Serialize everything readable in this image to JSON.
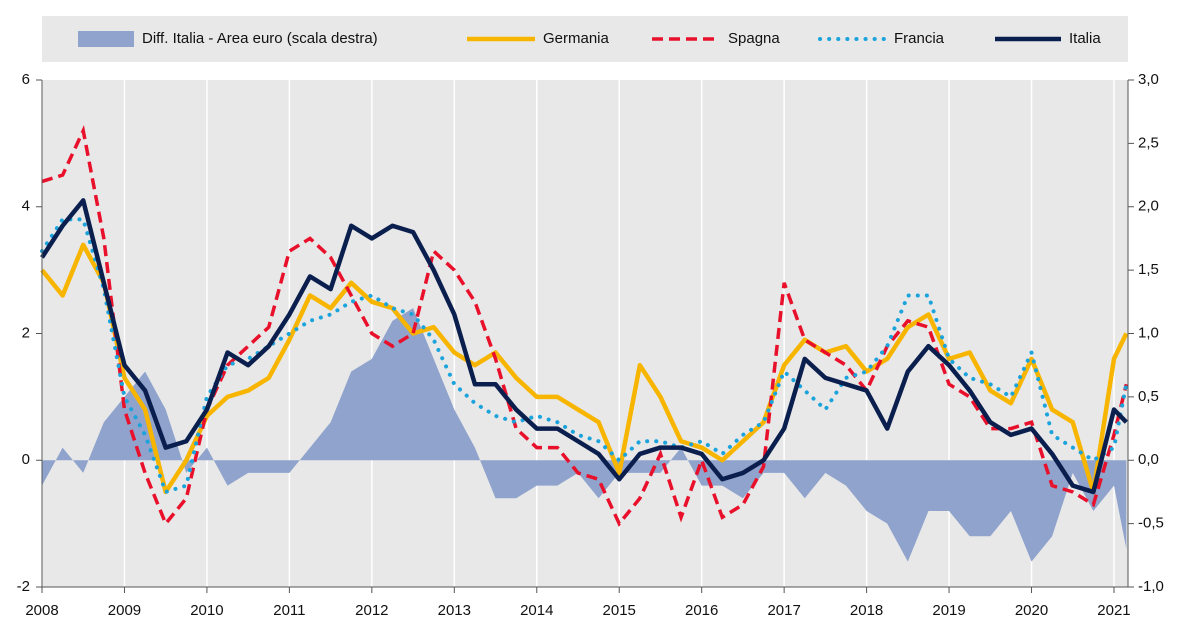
{
  "chart_data": {
    "type": "line",
    "x": [
      2008,
      2008.25,
      2008.5,
      2008.75,
      2009,
      2009.25,
      2009.5,
      2009.75,
      2010,
      2010.25,
      2010.5,
      2010.75,
      2011,
      2011.25,
      2011.5,
      2011.75,
      2012,
      2012.25,
      2012.5,
      2012.75,
      2013,
      2013.25,
      2013.5,
      2013.75,
      2014,
      2014.25,
      2014.5,
      2014.75,
      2015,
      2015.25,
      2015.5,
      2015.75,
      2016,
      2016.25,
      2016.5,
      2016.75,
      2017,
      2017.25,
      2017.5,
      2017.75,
      2018,
      2018.25,
      2018.5,
      2018.75,
      2019,
      2019.25,
      2019.5,
      2019.75,
      2020,
      2020.25,
      2020.5,
      2020.75,
      2021,
      2021.15
    ],
    "xlim": [
      2008,
      2021.17
    ],
    "xticks": [
      2008,
      2009,
      2010,
      2011,
      2012,
      2013,
      2014,
      2015,
      2016,
      2017,
      2018,
      2019,
      2020,
      2021
    ],
    "ylim": [
      -2,
      6
    ],
    "yticks": [
      -2,
      0,
      2,
      4,
      6
    ],
    "y2lim": [
      -1,
      3
    ],
    "y2ticks": [
      {
        "value": -1,
        "label": "-1,0"
      },
      {
        "value": -0.5,
        "label": "-0,5"
      },
      {
        "value": 0,
        "label": "0,0"
      },
      {
        "value": 0.5,
        "label": "0,5"
      },
      {
        "value": 1,
        "label": "1,0"
      },
      {
        "value": 1.5,
        "label": "1,5"
      },
      {
        "value": 2,
        "label": "2,0"
      },
      {
        "value": 2.5,
        "label": "2,5"
      },
      {
        "value": 3,
        "label": "3,0"
      }
    ],
    "grid": true,
    "legend": "top",
    "series": [
      {
        "name": "Diff. Italia - Area euro (scala destra)",
        "color": "#8fa3cc",
        "style": "area",
        "axis": "y2",
        "values": [
          -0.2,
          0.1,
          -0.1,
          0.3,
          0.5,
          0.7,
          0.4,
          -0.1,
          0.1,
          -0.2,
          -0.1,
          -0.1,
          -0.1,
          0.1,
          0.3,
          0.7,
          0.8,
          1.1,
          1.2,
          0.8,
          0.4,
          0.1,
          -0.3,
          -0.3,
          -0.2,
          -0.2,
          -0.1,
          -0.3,
          -0.1,
          -0.1,
          -0.1,
          0.1,
          -0.2,
          -0.2,
          -0.3,
          -0.1,
          -0.1,
          -0.3,
          -0.1,
          -0.2,
          -0.4,
          -0.5,
          -0.8,
          -0.4,
          -0.4,
          -0.6,
          -0.6,
          -0.4,
          -0.8,
          -0.6,
          -0.1,
          -0.4,
          -0.2,
          -0.7
        ]
      },
      {
        "name": "Germania",
        "color": "#f7b500",
        "style": "solid",
        "values": [
          3.0,
          2.6,
          3.4,
          2.8,
          1.3,
          0.8,
          -0.5,
          0.0,
          0.7,
          1.0,
          1.1,
          1.3,
          1.9,
          2.6,
          2.4,
          2.8,
          2.5,
          2.4,
          2.0,
          2.1,
          1.7,
          1.5,
          1.7,
          1.3,
          1.0,
          1.0,
          0.8,
          0.6,
          -0.2,
          1.5,
          1.0,
          0.3,
          0.2,
          0.0,
          0.3,
          0.6,
          1.5,
          1.9,
          1.7,
          1.8,
          1.4,
          1.6,
          2.1,
          2.3,
          1.6,
          1.7,
          1.1,
          0.9,
          1.6,
          0.8,
          0.6,
          -0.5,
          1.6,
          2.0
        ]
      },
      {
        "name": "Spagna",
        "color": "#e8102a",
        "style": "dashed",
        "values": [
          4.4,
          4.5,
          5.2,
          3.5,
          0.8,
          -0.2,
          -1.0,
          -0.6,
          0.8,
          1.5,
          1.8,
          2.1,
          3.3,
          3.5,
          3.2,
          2.6,
          2.0,
          1.8,
          2.0,
          3.3,
          3.0,
          2.5,
          1.6,
          0.5,
          0.2,
          0.2,
          -0.2,
          -0.3,
          -1.0,
          -0.6,
          0.1,
          -0.9,
          0.0,
          -0.9,
          -0.7,
          -0.1,
          2.8,
          1.9,
          1.7,
          1.5,
          1.1,
          1.8,
          2.2,
          2.1,
          1.2,
          1.0,
          0.5,
          0.5,
          0.6,
          -0.4,
          -0.5,
          -0.7,
          0.4,
          1.2
        ]
      },
      {
        "name": "Francia",
        "color": "#1ba3dc",
        "style": "dotted",
        "values": [
          3.3,
          3.8,
          3.8,
          2.7,
          1.0,
          0.4,
          -0.5,
          -0.4,
          1.0,
          1.5,
          1.6,
          1.8,
          2.0,
          2.2,
          2.3,
          2.5,
          2.6,
          2.4,
          2.3,
          1.9,
          1.2,
          0.9,
          0.7,
          0.6,
          0.7,
          0.6,
          0.4,
          0.3,
          0.0,
          0.3,
          0.3,
          0.2,
          0.3,
          0.1,
          0.4,
          0.6,
          1.4,
          1.1,
          0.8,
          1.3,
          1.4,
          1.8,
          2.6,
          2.6,
          1.6,
          1.3,
          1.2,
          1.0,
          1.7,
          0.4,
          0.2,
          0.0,
          0.2,
          1.2
        ]
      },
      {
        "name": "Italia",
        "color": "#0b1f4f",
        "style": "solid",
        "values": [
          3.2,
          3.7,
          4.1,
          2.8,
          1.5,
          1.1,
          0.2,
          0.3,
          0.8,
          1.7,
          1.5,
          1.8,
          2.3,
          2.9,
          2.7,
          3.7,
          3.5,
          3.7,
          3.6,
          3.0,
          2.3,
          1.2,
          1.2,
          0.8,
          0.5,
          0.5,
          0.3,
          0.1,
          -0.3,
          0.1,
          0.2,
          0.2,
          0.1,
          -0.3,
          -0.2,
          0.0,
          0.5,
          1.6,
          1.3,
          1.2,
          1.1,
          0.5,
          1.4,
          1.8,
          1.5,
          1.1,
          0.6,
          0.4,
          0.5,
          0.1,
          -0.4,
          -0.5,
          0.8,
          0.6
        ]
      }
    ]
  }
}
